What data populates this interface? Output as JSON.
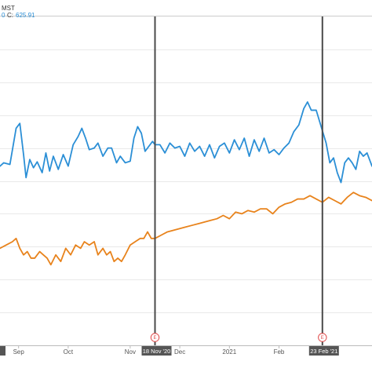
{
  "header": {
    "symbol_fragment": "MST",
    "close_prefix_fragment": "0",
    "close_label": "C:",
    "close_value": "625.91"
  },
  "colors": {
    "series_blue": "#2b8fd6",
    "series_orange": "#e8831c",
    "marker_line": "#4a4a4a",
    "event_red": "#e04848",
    "date_tag_bg": "#555555",
    "axis_text": "#555555",
    "background": "#ffffff"
  },
  "chart_data": {
    "type": "line",
    "xaxis_ticks": [
      "Sep",
      "Oct",
      "Nov",
      "Dec",
      "2021",
      "Feb"
    ],
    "xaxis_ticks_t": [
      1,
      5,
      10,
      14,
      18,
      22
    ],
    "xaxis_t_range": [
      -0.5,
      29.5
    ],
    "ylim": [
      0,
      100
    ],
    "grid": true,
    "markers": [
      {
        "date_label": "18 Nov '20",
        "t": 12,
        "event": "E"
      },
      {
        "date_label": "23 Feb '21",
        "t": 25.5,
        "event": "E"
      }
    ],
    "series": [
      {
        "values": [
          [
            -0.5,
            54.5
          ],
          [
            -0.2,
            55.5
          ],
          [
            0.3,
            55.0
          ],
          [
            0.8,
            66.0
          ],
          [
            1.1,
            67.5
          ],
          [
            1.4,
            58.0
          ],
          [
            1.6,
            51.0
          ],
          [
            1.9,
            56.5
          ],
          [
            2.2,
            54.0
          ],
          [
            2.5,
            55.8
          ],
          [
            2.9,
            52.5
          ],
          [
            3.2,
            58.5
          ],
          [
            3.5,
            53.0
          ],
          [
            3.8,
            57.5
          ],
          [
            4.2,
            53.5
          ],
          [
            4.6,
            58.0
          ],
          [
            5.0,
            54.5
          ],
          [
            5.4,
            61.0
          ],
          [
            5.8,
            63.5
          ],
          [
            6.1,
            66.0
          ],
          [
            6.4,
            63.0
          ],
          [
            6.7,
            59.5
          ],
          [
            7.1,
            60.0
          ],
          [
            7.4,
            61.5
          ],
          [
            7.8,
            57.5
          ],
          [
            8.2,
            60.0
          ],
          [
            8.5,
            60.0
          ],
          [
            8.9,
            55.5
          ],
          [
            9.2,
            57.5
          ],
          [
            9.6,
            55.5
          ],
          [
            10.0,
            56.0
          ],
          [
            10.3,
            63.0
          ],
          [
            10.6,
            66.5
          ],
          [
            10.9,
            64.5
          ],
          [
            11.2,
            59.0
          ],
          [
            11.5,
            60.5
          ],
          [
            11.8,
            62.0
          ],
          [
            12.0,
            61.0
          ],
          [
            12.4,
            61.0
          ],
          [
            12.8,
            58.5
          ],
          [
            13.2,
            61.5
          ],
          [
            13.6,
            60.0
          ],
          [
            14.0,
            60.5
          ],
          [
            14.4,
            57.5
          ],
          [
            14.8,
            61.5
          ],
          [
            15.2,
            59.0
          ],
          [
            15.6,
            60.5
          ],
          [
            16.0,
            57.5
          ],
          [
            16.4,
            61.0
          ],
          [
            16.8,
            57.0
          ],
          [
            17.2,
            60.5
          ],
          [
            17.6,
            61.5
          ],
          [
            18.0,
            58.5
          ],
          [
            18.4,
            62.5
          ],
          [
            18.8,
            59.5
          ],
          [
            19.2,
            63.0
          ],
          [
            19.6,
            57.5
          ],
          [
            20.0,
            62.5
          ],
          [
            20.4,
            59.0
          ],
          [
            20.8,
            63.0
          ],
          [
            21.2,
            58.5
          ],
          [
            21.6,
            59.5
          ],
          [
            22.0,
            58.0
          ],
          [
            22.4,
            60.0
          ],
          [
            22.8,
            61.5
          ],
          [
            23.2,
            65.0
          ],
          [
            23.6,
            67.0
          ],
          [
            24.0,
            72.0
          ],
          [
            24.3,
            74.0
          ],
          [
            24.6,
            71.5
          ],
          [
            25.0,
            71.5
          ],
          [
            25.4,
            66.5
          ],
          [
            25.8,
            61.5
          ],
          [
            26.1,
            55.5
          ],
          [
            26.4,
            57.0
          ],
          [
            26.7,
            52.5
          ],
          [
            27.0,
            49.5
          ],
          [
            27.3,
            55.5
          ],
          [
            27.6,
            57.0
          ],
          [
            27.9,
            55.5
          ],
          [
            28.2,
            53.5
          ],
          [
            28.5,
            59.0
          ],
          [
            28.8,
            57.5
          ],
          [
            29.1,
            58.5
          ],
          [
            29.5,
            54.5
          ]
        ]
      },
      {
        "values": [
          [
            -0.5,
            29.5
          ],
          [
            0.0,
            30.5
          ],
          [
            0.5,
            31.5
          ],
          [
            0.8,
            32.5
          ],
          [
            1.1,
            29.5
          ],
          [
            1.4,
            27.5
          ],
          [
            1.7,
            28.5
          ],
          [
            2.0,
            26.5
          ],
          [
            2.3,
            26.5
          ],
          [
            2.7,
            28.5
          ],
          [
            3.0,
            27.5
          ],
          [
            3.3,
            26.5
          ],
          [
            3.6,
            24.5
          ],
          [
            4.0,
            27.5
          ],
          [
            4.4,
            25.5
          ],
          [
            4.8,
            29.5
          ],
          [
            5.2,
            27.5
          ],
          [
            5.6,
            30.5
          ],
          [
            6.0,
            29.5
          ],
          [
            6.3,
            31.5
          ],
          [
            6.7,
            30.5
          ],
          [
            7.1,
            31.5
          ],
          [
            7.4,
            27.5
          ],
          [
            7.8,
            29.5
          ],
          [
            8.1,
            27.5
          ],
          [
            8.4,
            28.5
          ],
          [
            8.7,
            25.5
          ],
          [
            9.0,
            26.5
          ],
          [
            9.3,
            25.5
          ],
          [
            9.6,
            27.5
          ],
          [
            10.0,
            30.5
          ],
          [
            10.4,
            31.5
          ],
          [
            10.8,
            32.5
          ],
          [
            11.1,
            32.5
          ],
          [
            11.4,
            34.5
          ],
          [
            11.7,
            32.5
          ],
          [
            12.0,
            32.5
          ],
          [
            12.5,
            33.5
          ],
          [
            13.0,
            34.5
          ],
          [
            13.5,
            35.0
          ],
          [
            14.0,
            35.5
          ],
          [
            14.5,
            36.0
          ],
          [
            15.0,
            36.5
          ],
          [
            15.5,
            37.0
          ],
          [
            16.0,
            37.5
          ],
          [
            16.5,
            38.0
          ],
          [
            17.0,
            38.5
          ],
          [
            17.5,
            39.5
          ],
          [
            18.0,
            38.5
          ],
          [
            18.5,
            40.5
          ],
          [
            19.0,
            40.0
          ],
          [
            19.5,
            41.0
          ],
          [
            20.0,
            40.5
          ],
          [
            20.5,
            41.5
          ],
          [
            21.0,
            41.5
          ],
          [
            21.5,
            40.0
          ],
          [
            22.0,
            42.0
          ],
          [
            22.5,
            43.0
          ],
          [
            23.0,
            43.5
          ],
          [
            23.5,
            44.5
          ],
          [
            24.0,
            44.5
          ],
          [
            24.5,
            45.5
          ],
          [
            25.0,
            44.5
          ],
          [
            25.5,
            43.5
          ],
          [
            26.0,
            45.0
          ],
          [
            26.5,
            44.0
          ],
          [
            27.0,
            43.0
          ],
          [
            27.5,
            45.0
          ],
          [
            28.0,
            46.5
          ],
          [
            28.5,
            45.5
          ],
          [
            29.0,
            45.0
          ],
          [
            29.5,
            44.0
          ]
        ]
      }
    ]
  }
}
